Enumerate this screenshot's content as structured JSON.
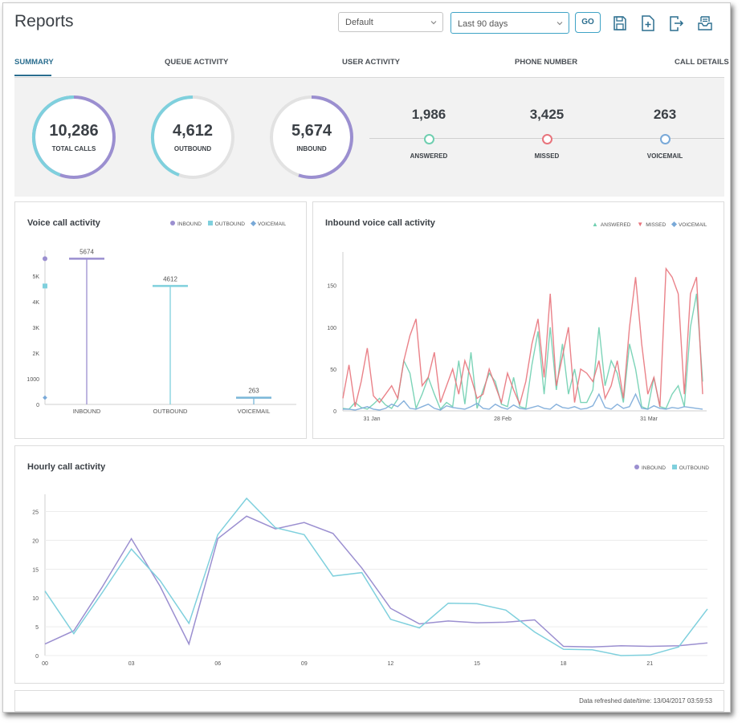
{
  "header": {
    "title": "Reports",
    "view_select": "Default",
    "range_select": "Last 90 days",
    "go_label": "GO"
  },
  "tabs": [
    {
      "label": "SUMMARY",
      "active": true
    },
    {
      "label": "QUEUE ACTIVITY",
      "active": false
    },
    {
      "label": "USER ACTIVITY",
      "active": false
    },
    {
      "label": "PHONE NUMBER",
      "active": false
    },
    {
      "label": "CALL DETAILS",
      "active": false
    }
  ],
  "summary": {
    "rings": [
      {
        "value": "10,286",
        "label": "TOTAL CALLS"
      },
      {
        "value": "4,612",
        "label": "OUTBOUND"
      },
      {
        "value": "5,674",
        "label": "INBOUND"
      }
    ],
    "stats": [
      {
        "value": "1,986",
        "label": "ANSWERED",
        "color": "#6fcfb0"
      },
      {
        "value": "3,425",
        "label": "MISSED",
        "color": "#e8747c"
      },
      {
        "value": "263",
        "label": "VOICEMAIL",
        "color": "#79a9d8"
      }
    ]
  },
  "colors": {
    "inbound": "#9b8fd0",
    "outbound": "#7fd0dd",
    "answered": "#6fcfb0",
    "missed": "#e8747c",
    "voicemail": "#79a9d8",
    "accent": "#2b6e8f"
  },
  "footer": {
    "text": "Data refreshed date/time: 13/04/2017 03:59:53"
  },
  "chart_data": [
    {
      "title": "Voice call activity",
      "type": "bar",
      "categories": [
        "INBOUND",
        "OUTBOUND",
        "VOICEMAIL"
      ],
      "values": [
        5674,
        4612,
        263
      ],
      "value_labels": [
        "5674",
        "4612",
        "263"
      ],
      "ylim": [
        0,
        6000
      ],
      "y_ticks": [
        "0",
        "1000",
        "2K",
        "3K",
        "4K",
        "5K"
      ],
      "legend": [
        "INBOUND",
        "OUTBOUND",
        "VOICEMAIL"
      ],
      "legend_position": "top-right"
    },
    {
      "title": "Inbound voice call activity",
      "type": "line",
      "x_ticks": [
        "31 Jan",
        "28 Feb",
        "31 Mar"
      ],
      "y_ticks": [
        "0",
        "50",
        "100",
        "150"
      ],
      "ylim": [
        0,
        190
      ],
      "legend_position": "top-right",
      "series": [
        {
          "name": "ANSWERED",
          "values": [
            3,
            2,
            10,
            4,
            2,
            8,
            15,
            7,
            3,
            14,
            60,
            45,
            3,
            20,
            40,
            20,
            2,
            10,
            5,
            60,
            8,
            70,
            3,
            25,
            45,
            35,
            8,
            5,
            40,
            5,
            3,
            55,
            95,
            20,
            100,
            25,
            80,
            20,
            50,
            10,
            10,
            25,
            100,
            30,
            60,
            45,
            10,
            80,
            50,
            5,
            2,
            40,
            5,
            3,
            20,
            30,
            5,
            100,
            140,
            35
          ]
        },
        {
          "name": "MISSED",
          "values": [
            15,
            55,
            5,
            35,
            75,
            18,
            10,
            20,
            30,
            15,
            60,
            90,
            110,
            30,
            40,
            70,
            10,
            30,
            50,
            20,
            60,
            40,
            15,
            20,
            50,
            30,
            10,
            45,
            25,
            8,
            35,
            80,
            110,
            40,
            140,
            30,
            65,
            100,
            10,
            50,
            45,
            35,
            60,
            15,
            30,
            60,
            15,
            100,
            160,
            80,
            20,
            40,
            5,
            170,
            160,
            140,
            20,
            140,
            160,
            20
          ]
        },
        {
          "name": "VOICEMAIL",
          "values": [
            2,
            2,
            1,
            3,
            5,
            2,
            1,
            3,
            8,
            5,
            12,
            3,
            2,
            5,
            8,
            3,
            1,
            6,
            4,
            3,
            2,
            5,
            9,
            3,
            2,
            8,
            4,
            2,
            7,
            3,
            2,
            4,
            6,
            3,
            2,
            8,
            4,
            3,
            5,
            2,
            3,
            6,
            20,
            4,
            2,
            8,
            3,
            5,
            20,
            3,
            2,
            6,
            3,
            2,
            4,
            3,
            5,
            4,
            3,
            2
          ]
        }
      ]
    },
    {
      "title": "Hourly call activity",
      "type": "line",
      "x": [
        0,
        1,
        2,
        3,
        4,
        5,
        6,
        7,
        8,
        9,
        10,
        11,
        12,
        13,
        14,
        15,
        16,
        17,
        18,
        19,
        20,
        21,
        22,
        23
      ],
      "x_ticks": [
        "00",
        "03",
        "06",
        "09",
        "12",
        "15",
        "18",
        "21"
      ],
      "y_ticks": [
        "0",
        "5",
        "10",
        "15",
        "20",
        "25"
      ],
      "ylim": [
        0,
        28
      ],
      "legend_position": "top-right",
      "series": [
        {
          "name": "INBOUND",
          "values": [
            2,
            4.3,
            12,
            20.3,
            12,
            2,
            20.3,
            24.2,
            22,
            23.1,
            21.2,
            15.2,
            8.2,
            5.5,
            6,
            5.7,
            5.8,
            6.2,
            1.6,
            1.5,
            1.7,
            1.6,
            1.7,
            2.2
          ]
        },
        {
          "name": "OUTBOUND",
          "values": [
            11.2,
            3.8,
            11,
            18.5,
            13,
            5.6,
            21,
            27.3,
            22.2,
            21,
            13.8,
            14.4,
            6.3,
            4.8,
            9.1,
            9,
            7.9,
            4.1,
            1.1,
            1,
            0,
            0.1,
            1.5,
            8.1
          ]
        }
      ]
    }
  ]
}
